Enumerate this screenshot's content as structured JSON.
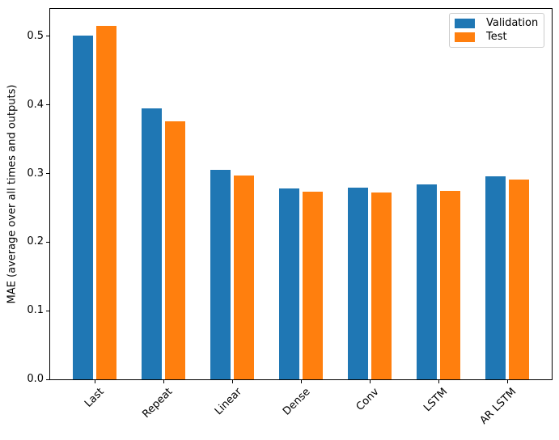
{
  "chart_data": {
    "type": "bar",
    "title": "",
    "categories": [
      "Last",
      "Repeat",
      "Linear",
      "Dense",
      "Conv",
      "LSTM",
      "AR LSTM"
    ],
    "series": [
      {
        "name": "Validation",
        "color": "#1f77b4",
        "values": [
          0.501,
          0.395,
          0.305,
          0.278,
          0.279,
          0.284,
          0.296
        ]
      },
      {
        "name": "Test",
        "color": "#ff7f0e",
        "values": [
          0.515,
          0.376,
          0.297,
          0.274,
          0.272,
          0.275,
          0.291
        ]
      }
    ],
    "xlabel": "",
    "ylabel": "MAE (average over all times and outputs)",
    "ylim": [
      0,
      0.54
    ],
    "ytick_values": [
      0.0,
      0.1,
      0.2,
      0.3,
      0.4,
      0.5
    ],
    "ytick_labels": [
      "0.0",
      "0.1",
      "0.2",
      "0.3",
      "0.4",
      "0.5"
    ],
    "xtick_rotation_deg": 45,
    "grid": false,
    "legend_position": "upper right",
    "bar_width_units": 0.3,
    "group_offset_units": 0.17,
    "axis_color": "#000000",
    "background_color": "#ffffff"
  }
}
